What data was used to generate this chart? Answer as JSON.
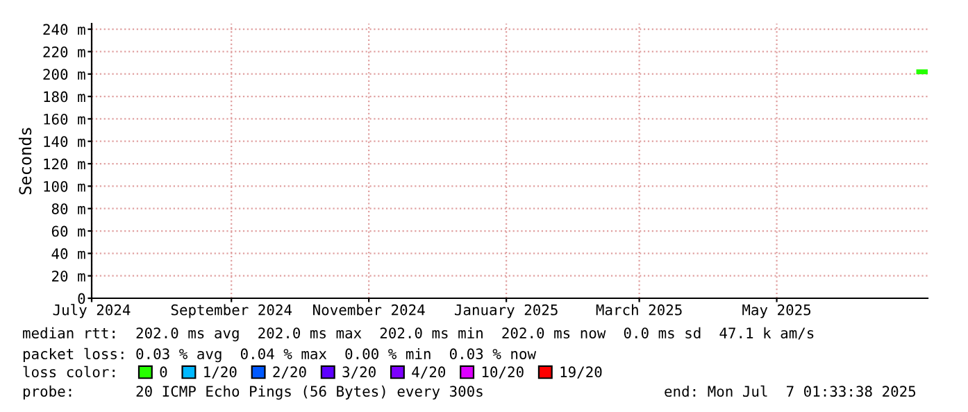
{
  "chart_data": {
    "type": "line",
    "ylabel": "Seconds",
    "x": [
      "2025-07-03",
      "2025-07-06"
    ],
    "series": [
      {
        "name": "0",
        "color": "#26ff00",
        "values": [
          202,
          202
        ]
      },
      {
        "name": "1/20",
        "color": "#00b8ff",
        "values": [
          null,
          null
        ]
      },
      {
        "name": "2/20",
        "color": "#0059ff",
        "values": [
          null,
          null
        ]
      },
      {
        "name": "3/20",
        "color": "#5e00ff",
        "values": [
          null,
          null
        ]
      },
      {
        "name": "4/20",
        "color": "#7e00ff",
        "values": [
          null,
          null
        ]
      },
      {
        "name": "10/20",
        "color": "#dd00ff",
        "values": [
          null,
          null
        ]
      },
      {
        "name": "19/20",
        "color": "#ff0000",
        "values": [
          null,
          null
        ]
      }
    ],
    "legend_title": "loss color:",
    "legend": "bottom",
    "grid": true,
    "marker": "none",
    "line_style": "solid",
    "xlim": [
      "2024-07-01",
      "2025-07-07"
    ],
    "xticks": [
      {
        "value": "2024-07-01",
        "label": "July 2024"
      },
      {
        "value": "2024-09-01",
        "label": "September 2024"
      },
      {
        "value": "2024-11-01",
        "label": "November 2024"
      },
      {
        "value": "2025-01-01",
        "label": "January 2025"
      },
      {
        "value": "2025-03-01",
        "label": "March 2025"
      },
      {
        "value": "2025-05-01",
        "label": "May 2025"
      }
    ],
    "ylim": [
      0,
      245
    ],
    "yticks": [
      0,
      {
        "value": 20,
        "label": "20 m"
      },
      {
        "value": 40,
        "label": "40 m"
      },
      {
        "value": 60,
        "label": "60 m"
      },
      {
        "value": 80,
        "label": "80 m"
      },
      {
        "value": 100,
        "label": "100 m"
      },
      {
        "value": 120,
        "label": "120 m"
      },
      {
        "value": 140,
        "label": "140 m"
      },
      {
        "value": 160,
        "label": "160 m"
      },
      {
        "value": 180,
        "label": "180 m"
      },
      {
        "value": 200,
        "label": "200 m"
      },
      {
        "value": 220,
        "label": "220 m"
      },
      {
        "value": 240,
        "label": "240 m"
      }
    ],
    "annotations": [
      "median rtt:  202.0 ms avg  202.0 ms max  202.0 ms min  202.0 ms now  0.0 ms sd  47.1 k am/s",
      "packet loss: 0.03 % avg  0.04 % max  0.00 % min  0.03 % now",
      "probe:       20 ICMP Echo Pings (56 Bytes) every 300s",
      "end: Mon Jul  7 01:33:38 2025"
    ]
  }
}
